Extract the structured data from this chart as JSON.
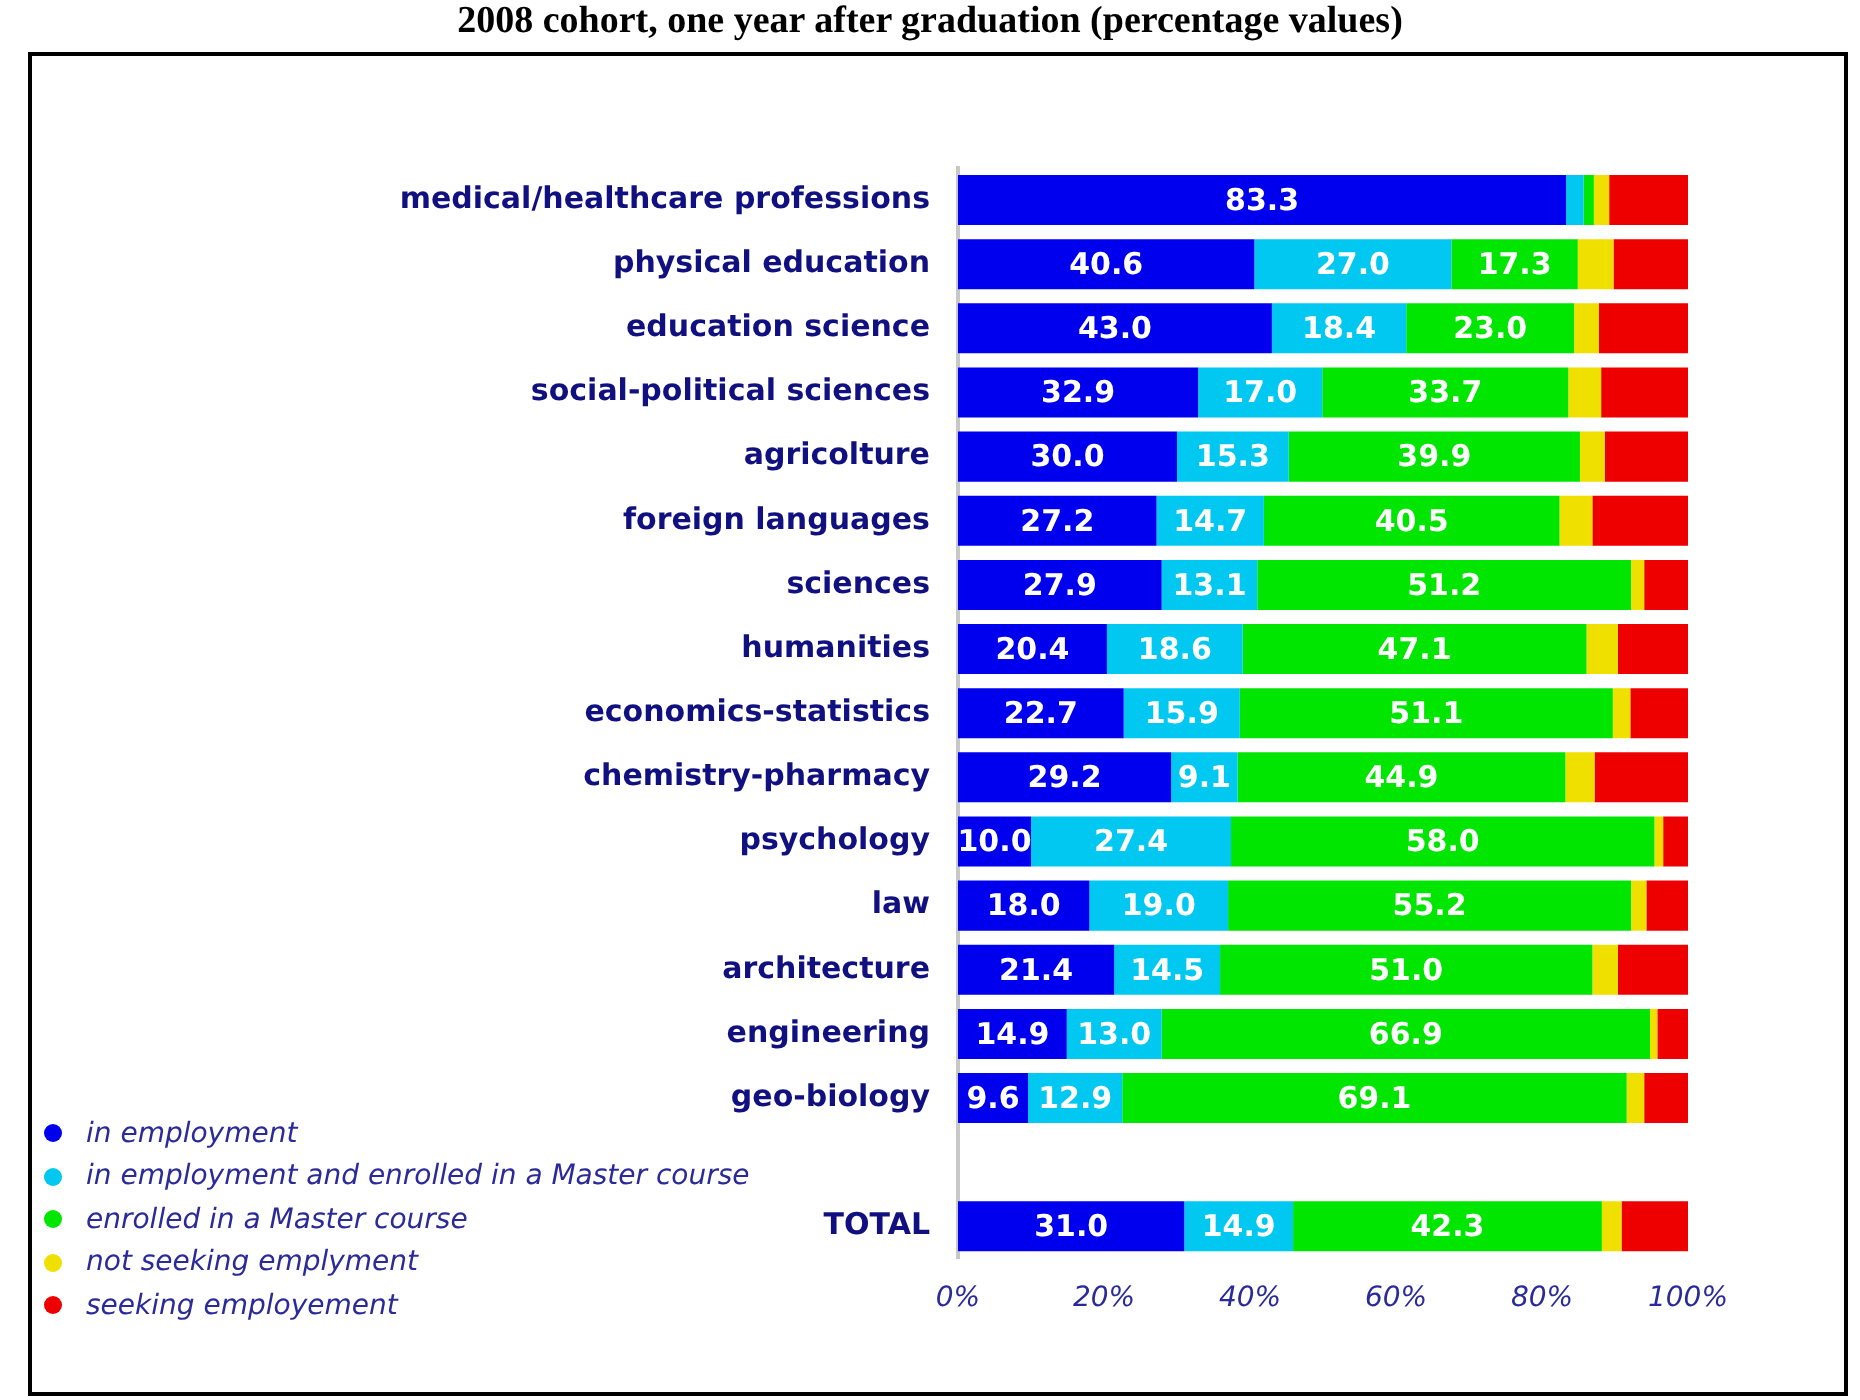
{
  "chart_data": {
    "type": "bar",
    "orientation": "horizontal",
    "stacked": true,
    "title": "2008 cohort, one year after graduation (percentage values)",
    "categories": [
      "medical/healthcare professions",
      "physical education",
      "education science",
      "social-political sciences",
      "agricolture",
      "foreign languages",
      "sciences",
      "humanities",
      "economics-statistics",
      "chemistry-pharmacy",
      "psychology",
      "law",
      "architecture",
      "engineering",
      "geo-biology",
      null,
      "TOTAL"
    ],
    "series": [
      {
        "name": "in employment",
        "color": "#0000ee",
        "values": [
          83.3,
          40.6,
          43.0,
          32.9,
          30.0,
          27.2,
          27.9,
          20.4,
          22.7,
          29.2,
          10.0,
          18.0,
          21.4,
          14.9,
          9.6,
          null,
          31.0
        ],
        "value_labels": [
          "83.3",
          "40.6",
          "43.0",
          "32.9",
          "30.0",
          "27.2",
          "27.9",
          "20.4",
          "22.7",
          "29.2",
          "10.0",
          "18.0",
          "21.4",
          "14.9",
          "9.6",
          null,
          "31.0"
        ]
      },
      {
        "name": "in employment and enrolled in a Master course",
        "color": "#00c8f0",
        "values": [
          2.4,
          27.0,
          18.4,
          17.0,
          15.3,
          14.7,
          13.1,
          18.6,
          15.9,
          9.1,
          27.4,
          19.0,
          14.5,
          13.0,
          12.9,
          null,
          14.9
        ],
        "value_labels": [
          null,
          "27.0",
          "18.4",
          "17.0",
          "15.3",
          "14.7",
          "13.1",
          "18.6",
          "15.9",
          "9.1",
          "27.4",
          "19.0",
          "14.5",
          "13.0",
          "12.9",
          null,
          "14.9"
        ]
      },
      {
        "name": "enrolled in a Master course",
        "color": "#00e600",
        "values": [
          1.4,
          17.3,
          23.0,
          33.7,
          39.9,
          40.5,
          51.2,
          47.1,
          51.1,
          44.9,
          58.0,
          55.2,
          51.0,
          66.9,
          69.1,
          null,
          42.3
        ],
        "value_labels": [
          null,
          "17.3",
          "23.0",
          "33.7",
          "39.9",
          "40.5",
          "51.2",
          "47.1",
          "51.1",
          "44.9",
          "58.0",
          "55.2",
          "51.0",
          "66.9",
          "69.1",
          null,
          "42.3"
        ]
      },
      {
        "name": "not seeking emplyment",
        "color": "#f0e000",
        "values": [
          2.1,
          4.9,
          3.4,
          4.5,
          3.4,
          4.5,
          1.8,
          4.3,
          2.4,
          4.0,
          1.2,
          2.1,
          3.5,
          1.0,
          2.4,
          null,
          2.7
        ]
      },
      {
        "name": "seeking employement",
        "color": "#ee0000",
        "values": [
          10.9,
          10.2,
          12.2,
          11.9,
          11.4,
          13.1,
          6.0,
          9.6,
          7.9,
          12.8,
          3.4,
          5.7,
          9.6,
          4.2,
          6.0,
          null,
          9.1
        ]
      }
    ],
    "xlim": [
      0,
      100
    ],
    "xticks": [
      {
        "value": 0,
        "label": "0%"
      },
      {
        "value": 20,
        "label": "20%"
      },
      {
        "value": 40,
        "label": "40%"
      },
      {
        "value": 60,
        "label": "60%"
      },
      {
        "value": 80,
        "label": "80%"
      },
      {
        "value": 100,
        "label": "100%"
      }
    ],
    "grid": false,
    "legend": "bottom left",
    "marker": "circle"
  }
}
